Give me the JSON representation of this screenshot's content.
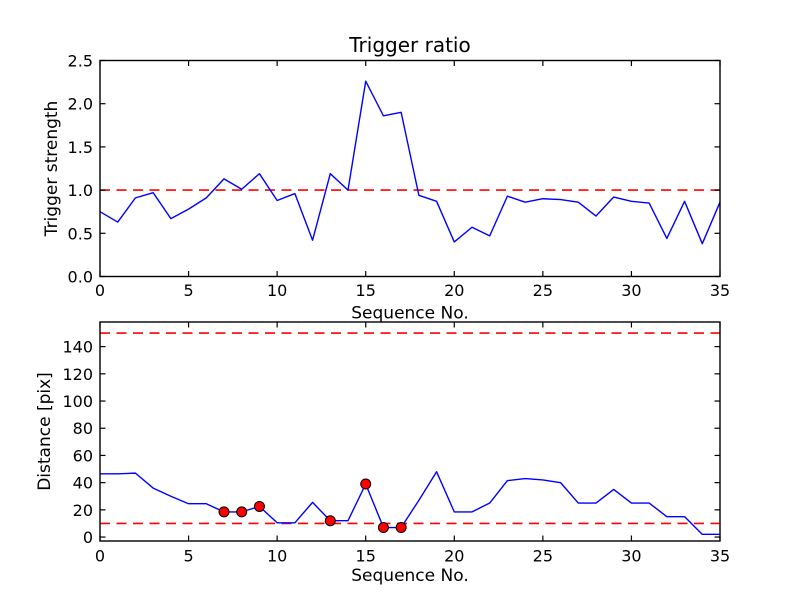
{
  "figure": {
    "background": "#ffffff"
  },
  "colors": {
    "line": "#0000ff",
    "threshold": "#ff0000",
    "marker_fill": "#ff0000",
    "marker_edge": "#000000",
    "frame": "#000000",
    "text": "#000000"
  },
  "chart_data": [
    {
      "type": "line",
      "title": "Trigger ratio",
      "xlabel": "Sequence No.",
      "ylabel": "Trigger strength",
      "xlim": [
        0,
        35
      ],
      "ylim": [
        0,
        2.5
      ],
      "xticks": [
        0,
        5,
        10,
        15,
        20,
        25,
        30,
        35
      ],
      "xtick_labels": [
        "0",
        "5",
        "10",
        "15",
        "20",
        "25",
        "30",
        "35"
      ],
      "yticks": [
        0,
        0.5,
        1,
        1.5,
        2,
        2.5
      ],
      "ytick_labels": [
        "0.0",
        "0.5",
        "1.0",
        "1.5",
        "2.0",
        "2.5"
      ],
      "grid": false,
      "legend": null,
      "x": [
        0,
        1,
        2,
        3,
        4,
        5,
        6,
        7,
        8,
        9,
        10,
        11,
        12,
        13,
        14,
        15,
        16,
        17,
        18,
        19,
        20,
        21,
        22,
        23,
        24,
        25,
        26,
        27,
        28,
        29,
        30,
        31,
        32,
        33,
        34,
        35
      ],
      "series": [
        {
          "name": "trigger-strength",
          "color": "#0000ff",
          "values": [
            0.75,
            0.63,
            0.91,
            0.97,
            0.67,
            0.78,
            0.91,
            1.13,
            1.01,
            1.19,
            0.88,
            0.96,
            0.42,
            1.19,
            1.0,
            2.26,
            1.86,
            1.9,
            0.94,
            0.87,
            0.4,
            0.57,
            0.47,
            0.93,
            0.86,
            0.9,
            0.89,
            0.86,
            0.7,
            0.92,
            0.87,
            0.85,
            0.44,
            0.87,
            0.38,
            0.86
          ]
        }
      ],
      "thresholds": [
        {
          "y": 1.0,
          "color": "#ff0000",
          "style": "dashed"
        }
      ]
    },
    {
      "type": "line",
      "title": "",
      "xlabel": "Sequence No.",
      "ylabel": "Distance [pix]",
      "xlim": [
        0,
        35
      ],
      "ylim": [
        -2.9,
        158.1
      ],
      "xticks": [
        0,
        5,
        10,
        15,
        20,
        25,
        30,
        35
      ],
      "xtick_labels": [
        "0",
        "5",
        "10",
        "15",
        "20",
        "25",
        "30",
        "35"
      ],
      "yticks": [
        0,
        20,
        40,
        60,
        80,
        100,
        120,
        140
      ],
      "ytick_labels": [
        "0",
        "20",
        "40",
        "60",
        "80",
        "100",
        "120",
        "140"
      ],
      "grid": false,
      "legend": null,
      "x": [
        0,
        1,
        2,
        3,
        4,
        5,
        6,
        7,
        8,
        9,
        10,
        11,
        12,
        13,
        14,
        15,
        16,
        17,
        18,
        19,
        20,
        21,
        22,
        23,
        24,
        25,
        26,
        27,
        28,
        29,
        30,
        31,
        32,
        33,
        34,
        35
      ],
      "series": [
        {
          "name": "distance",
          "color": "#0000ff",
          "values": [
            46.5,
            46.5,
            47,
            36,
            30,
            24.5,
            24.5,
            18.5,
            18.5,
            22.5,
            10.5,
            10.5,
            25.5,
            12,
            12,
            39,
            7,
            7,
            27,
            48,
            18.5,
            18.5,
            25,
            41.5,
            43,
            42,
            40,
            25,
            25,
            35,
            25,
            25,
            15,
            15,
            2,
            2
          ]
        }
      ],
      "thresholds": [
        {
          "y": 10,
          "color": "#ff0000",
          "style": "dashed"
        },
        {
          "y": 150,
          "color": "#ff0000",
          "style": "dashed"
        }
      ],
      "markers": {
        "x": [
          7,
          8,
          9,
          13,
          15,
          16,
          17
        ],
        "values": [
          18.5,
          18.5,
          22.5,
          12,
          39,
          7,
          7
        ],
        "fill": "#ff0000",
        "edge": "#000000"
      }
    }
  ]
}
